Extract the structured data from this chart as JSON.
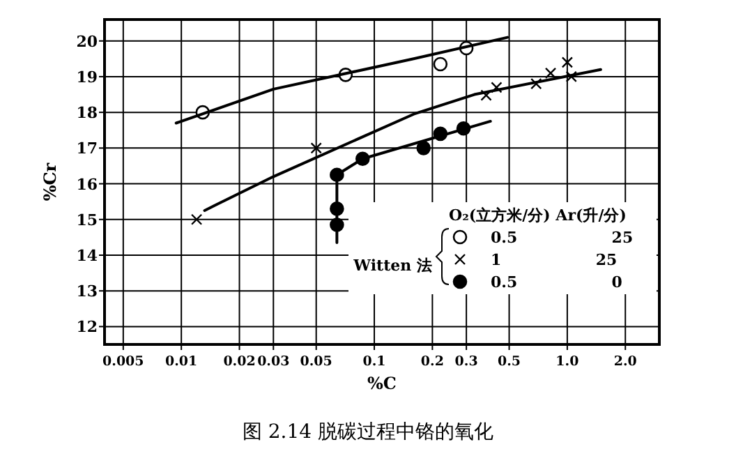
{
  "chart_data": {
    "type": "scatter",
    "title": "图 2.14  脱碳过程中铬的氧化",
    "xlabel": "%C",
    "ylabel": "%Cr",
    "legend_title": "O₂(立方米/分)  Ar(升/分)",
    "legend": "bottom right",
    "log": "x",
    "grid": true,
    "xlim": [
      0.004,
      3
    ],
    "xticks": [
      0.005,
      0.01,
      0.02,
      0.03,
      0.05,
      0.1,
      0.2,
      0.3,
      0.5,
      {
        "value": 1,
        "label": "1.0"
      },
      {
        "value": 2,
        "label": "2.0"
      }
    ],
    "ylim": [
      11.5,
      20.6
    ],
    "yticks": [
      12,
      13,
      14,
      15,
      16,
      17,
      18,
      19,
      20
    ],
    "annotations": [
      "Witten 法"
    ],
    "series": [
      {
        "type": "scatter",
        "name": "0.5  25",
        "marker": "circle",
        "color": "#ffffff",
        "x": [
          0.0129,
          0.071,
          0.22,
          0.3
        ],
        "values": [
          18.0,
          19.05,
          19.35,
          19.8
        ]
      },
      {
        "type": "scatter",
        "name": "1  25",
        "marker": "cross",
        "color": "#000000",
        "x": [
          0.012,
          0.05,
          0.38,
          0.43,
          0.69,
          0.82,
          1.0,
          1.05
        ],
        "values": [
          15.0,
          17.0,
          18.48,
          18.7,
          18.8,
          19.1,
          19.4,
          19.0
        ]
      },
      {
        "type": "scatter",
        "name": "0.5  0",
        "marker": "circle",
        "color": "#000000",
        "x": [
          0.064,
          0.064,
          0.064,
          0.087,
          0.18,
          0.22,
          0.29
        ],
        "values": [
          14.85,
          15.3,
          16.25,
          16.7,
          17.0,
          17.4,
          17.55
        ]
      },
      {
        "type": "line",
        "marker": "none",
        "color": "#000000",
        "x": [
          0.0094,
          0.03,
          0.16,
          0.49
        ],
        "values": [
          17.7,
          18.65,
          19.5,
          20.1
        ]
      },
      {
        "type": "line",
        "marker": "none",
        "color": "#000000",
        "x": [
          0.0132,
          0.015,
          0.03,
          0.16,
          0.33,
          1.49
        ],
        "values": [
          15.25,
          15.4,
          16.2,
          17.95,
          18.5,
          19.2
        ]
      },
      {
        "type": "line",
        "marker": "none",
        "color": "#000000",
        "x": [
          0.064,
          0.064,
          0.087,
          0.4
        ],
        "values": [
          14.35,
          16.25,
          16.7,
          17.75
        ]
      }
    ]
  }
}
